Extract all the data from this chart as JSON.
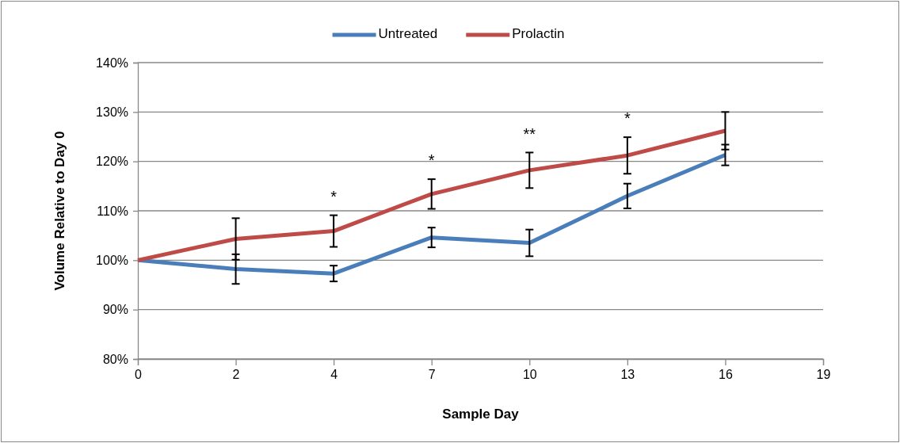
{
  "chart_data": {
    "type": "line",
    "xlabel": "Sample Day",
    "ylabel": "Volume Relative to Day 0",
    "categories": [
      "0",
      "2",
      "4",
      "7",
      "10",
      "13",
      "16",
      "19"
    ],
    "series": [
      {
        "name": "Untreated",
        "color": "#4a7ebb",
        "values": [
          100,
          98.2,
          97.3,
          104.6,
          103.5,
          113,
          121.3,
          null
        ],
        "errors": [
          null,
          3,
          1.6,
          2,
          2.7,
          2.5,
          2.1,
          null
        ]
      },
      {
        "name": "Prolactin",
        "color": "#be4b48",
        "values": [
          100,
          104.3,
          105.9,
          113.4,
          118.2,
          121.2,
          126.2,
          null
        ],
        "errors": [
          null,
          4.2,
          3.2,
          3,
          3.6,
          3.7,
          3.8,
          null
        ]
      }
    ],
    "ylim": [
      80,
      140
    ],
    "yticks": [
      {
        "value": 80,
        "label": "80%"
      },
      {
        "value": 90,
        "label": "90%"
      },
      {
        "value": 100,
        "label": "100%"
      },
      {
        "value": 110,
        "label": "110%"
      },
      {
        "value": 120,
        "label": "120%"
      },
      {
        "value": 130,
        "label": "130%"
      },
      {
        "value": 140,
        "label": "140%"
      }
    ],
    "annotations": [
      {
        "text": "*",
        "x": "4",
        "y": 105.9
      },
      {
        "text": "*",
        "x": "7",
        "y": 113.4
      },
      {
        "text": "**",
        "x": "10",
        "y": 118.2
      },
      {
        "text": "*",
        "x": "13",
        "y": 121.2
      }
    ],
    "grid": "y",
    "legend": "top",
    "marker": "none",
    "line_style": "solid"
  }
}
